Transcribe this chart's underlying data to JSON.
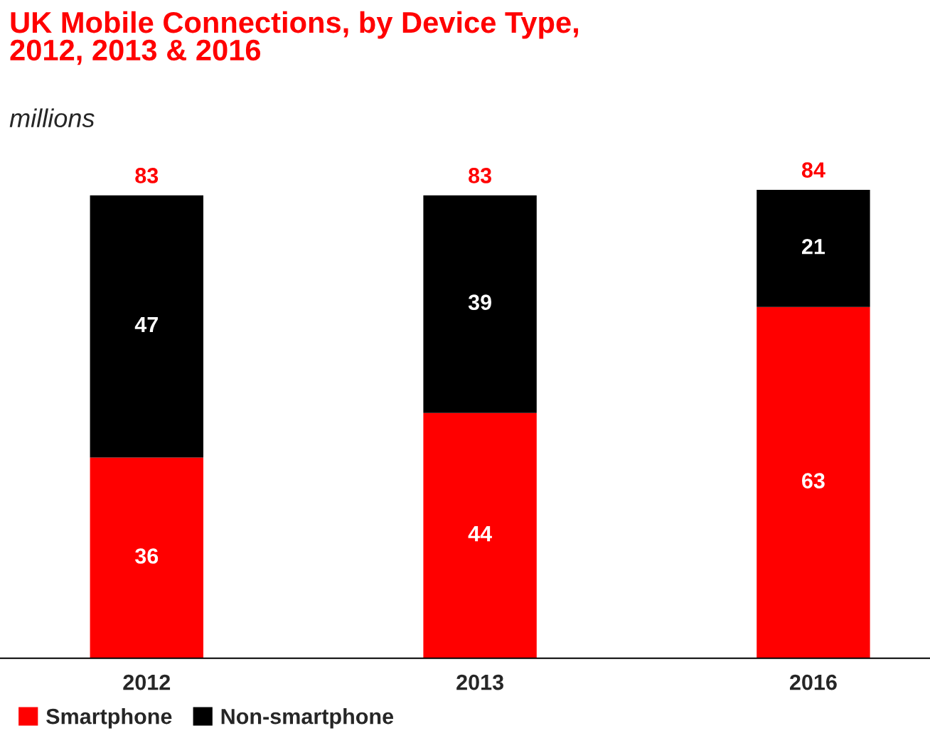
{
  "chart_data": {
    "type": "bar",
    "title": "UK Mobile Connections, by Device Type,\n2012, 2013 & 2016",
    "subtitle": "millions",
    "categories": [
      "2012",
      "2013",
      "2016"
    ],
    "stacked": true,
    "data_labels": true,
    "totals": [
      "83",
      "83",
      "84"
    ],
    "legend": "bottom left",
    "series": [
      {
        "name": "Smartphone",
        "color": "#ff0000",
        "values": [
          36,
          44,
          63
        ]
      },
      {
        "name": "Non-smartphone",
        "color": "#000000",
        "values": [
          47,
          39,
          21
        ]
      }
    ]
  }
}
